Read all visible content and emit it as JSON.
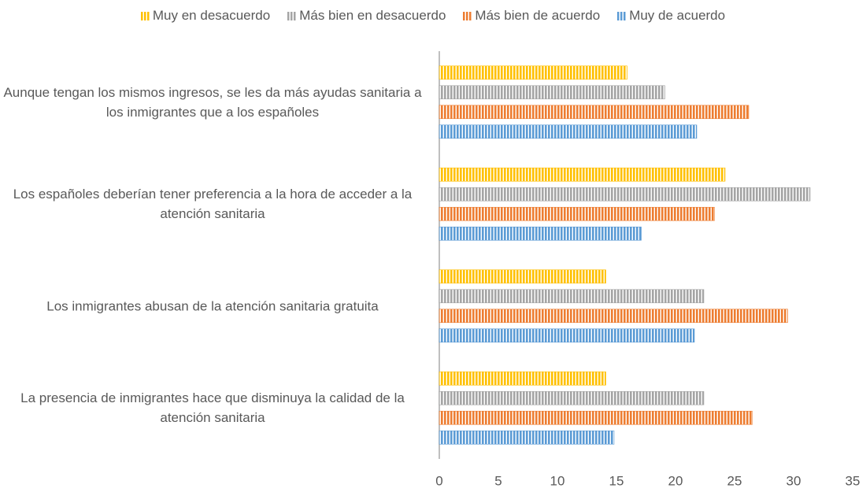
{
  "chart_data": {
    "type": "hbar",
    "categories": [
      "Aunque tengan los mismos ingresos, se les da más ayudas sanitaria a los inmigrantes que a los españoles",
      "Los españoles deberían tener preferencia a la hora de acceder a la atención sanitaria",
      "Los inmigrantes abusan de la atención sanitaria gratuita",
      "La presencia de inmigrantes hace que disminuya la calidad de la atención sanitaria"
    ],
    "series": [
      {
        "name": "Muy en desacuerdo",
        "color": "#ffc000",
        "values": [
          15.9,
          24.2,
          14.1,
          14.1
        ]
      },
      {
        "name": "Más bien en desacuerdo",
        "color": "#a5a5a5",
        "values": [
          19.1,
          31.4,
          22.4,
          22.4
        ]
      },
      {
        "name": "Más bien de acuerdo",
        "color": "#ed7d31",
        "values": [
          26.2,
          23.3,
          29.5,
          26.5
        ]
      },
      {
        "name": "Muy de acuerdo",
        "color": "#5b9bd5",
        "values": [
          21.8,
          17.1,
          21.6,
          14.8
        ]
      }
    ],
    "xlim": [
      0,
      35
    ],
    "xticks": [
      0,
      5,
      10,
      15,
      20,
      25,
      30,
      35
    ],
    "grid": false,
    "legend": "top"
  }
}
